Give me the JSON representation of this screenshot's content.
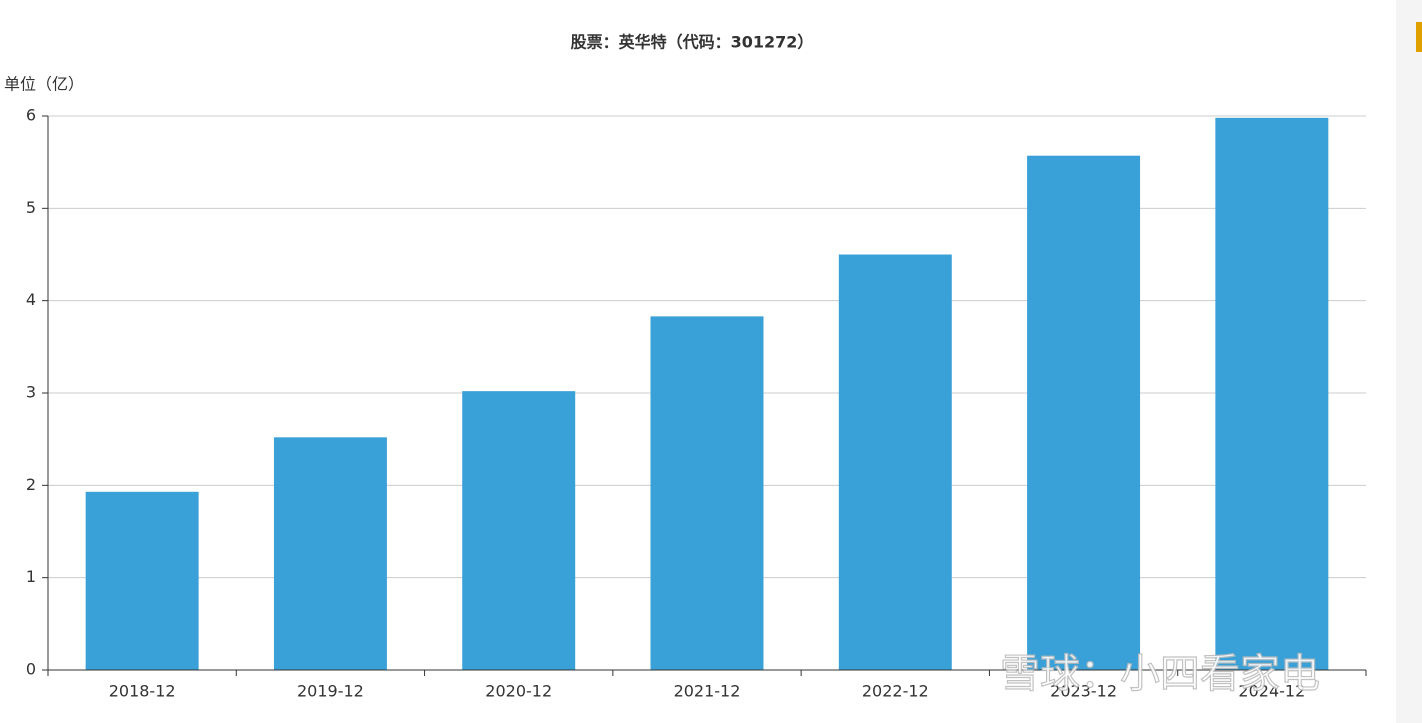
{
  "chart_data": {
    "type": "bar",
    "title": "股票：英华特（代码：301272）",
    "y_label": "单位（亿）",
    "categories": [
      "2018-12",
      "2019-12",
      "2020-12",
      "2021-12",
      "2022-12",
      "2023-12",
      "2024-12"
    ],
    "values": [
      1.93,
      2.52,
      3.02,
      3.83,
      4.5,
      5.57,
      5.98
    ],
    "color": "#3aa1d8",
    "ylim": [
      0,
      6
    ],
    "yticks": [
      0,
      1,
      2,
      3,
      4,
      5,
      6
    ],
    "grid": true,
    "watermark": "雪球：小四看家电"
  }
}
